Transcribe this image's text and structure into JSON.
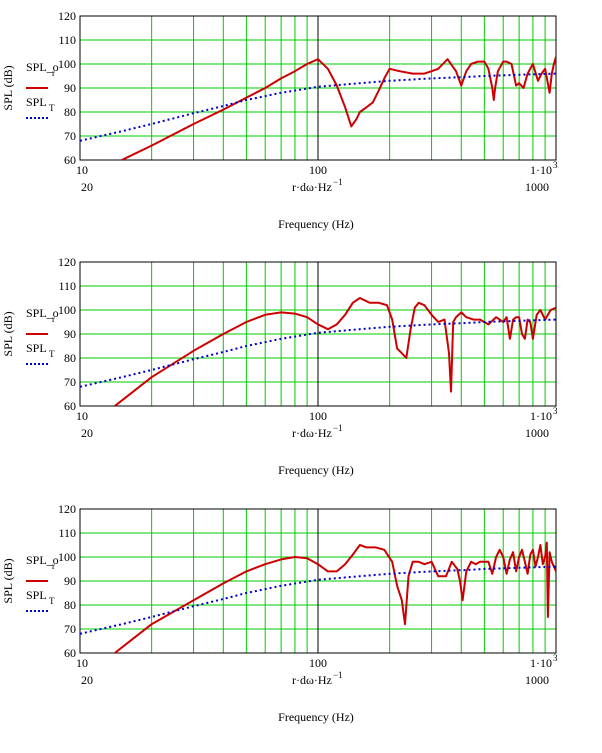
{
  "chart_data": [
    {
      "type": "line",
      "xscale": "log",
      "xlim": [
        10,
        1000
      ],
      "ylim": [
        60,
        120
      ],
      "yticks": [
        "60",
        "70",
        "80",
        "90",
        "100",
        "110",
        "120"
      ],
      "xtick_min": "10",
      "xtick_mid": "100",
      "xtick_max_base": "1·10",
      "xtick_max_exp": "3",
      "xlabel": "r·dω·Hz",
      "xlabel_exp": "−1",
      "ylabel": "SPL (dB)",
      "xaxis_title": "Frequency (Hz)",
      "extra_tick_20": "20",
      "extra_tick_1000": "1000",
      "series": [
        {
          "name": "SPL_o",
          "name_main": "SPL_o",
          "name_sub": "r",
          "color": "#cc0000",
          "style": "solid",
          "x": [
            15,
            20,
            30,
            40,
            50,
            60,
            70,
            80,
            90,
            100,
            110,
            120,
            130,
            138,
            145,
            150,
            160,
            170,
            180,
            190,
            200,
            220,
            250,
            280,
            300,
            320,
            350,
            380,
            400,
            420,
            440,
            470,
            500,
            520,
            540,
            548,
            555,
            570,
            600,
            620,
            650,
            680,
            700,
            730,
            760,
            800,
            840,
            870,
            900,
            940,
            960,
            980,
            1000
          ],
          "y": [
            60,
            66,
            75,
            81,
            86,
            90,
            94,
            97,
            100,
            102,
            98,
            91,
            82,
            74,
            77,
            80,
            82,
            84,
            89,
            94,
            98,
            97,
            96,
            96,
            97,
            98,
            102,
            97,
            91,
            97,
            100,
            101,
            101,
            98,
            90,
            85,
            90,
            97,
            101,
            101,
            100,
            91,
            92,
            90,
            96,
            100,
            93,
            96,
            98,
            88,
            96,
            100,
            103
          ]
        },
        {
          "name": "SPL_T",
          "name_main": "SPL",
          "name_sub": "T",
          "color": "#0000cc",
          "style": "dotted",
          "x": [
            10,
            15,
            20,
            30,
            40,
            50,
            70,
            100,
            150,
            200,
            300,
            400,
            500,
            700,
            1000
          ],
          "y": [
            68,
            72,
            75,
            79.5,
            82.5,
            85,
            88,
            90.5,
            92,
            93,
            94,
            94.5,
            95,
            95.5,
            96
          ]
        }
      ]
    },
    {
      "type": "line",
      "xscale": "log",
      "xlim": [
        10,
        1000
      ],
      "ylim": [
        60,
        120
      ],
      "yticks": [
        "60",
        "70",
        "80",
        "90",
        "100",
        "110",
        "120"
      ],
      "xtick_min": "10",
      "xtick_mid": "100",
      "xtick_max_base": "1·10",
      "xtick_max_exp": "3",
      "xlabel": "r·dω·Hz",
      "xlabel_exp": "−1",
      "ylabel": "SPL (dB)",
      "xaxis_title": "Frequency (Hz)",
      "extra_tick_20": "20",
      "extra_tick_1000": "1000",
      "series": [
        {
          "name": "SPL_o",
          "name_main": "SPL_o",
          "name_sub": "r",
          "color": "#cc0000",
          "style": "solid",
          "x": [
            14,
            20,
            30,
            40,
            50,
            60,
            70,
            80,
            90,
            100,
            110,
            120,
            130,
            140,
            150,
            165,
            180,
            195,
            205,
            215,
            225,
            235,
            245,
            255,
            265,
            280,
            300,
            320,
            340,
            355,
            362,
            370,
            380,
            400,
            420,
            450,
            480,
            520,
            560,
            580,
            600,
            620,
            640,
            660,
            680,
            700,
            720,
            740,
            760,
            780,
            800,
            830,
            860,
            900,
            950,
            1000
          ],
          "y": [
            60,
            72,
            83,
            90,
            95,
            98,
            99,
            98.5,
            97,
            94,
            92,
            94,
            98,
            103,
            105,
            103,
            103,
            102,
            96,
            84,
            82,
            80,
            92,
            101,
            103,
            102,
            98,
            95,
            96,
            82,
            66,
            95,
            97,
            99,
            97,
            96,
            96,
            94,
            97,
            96,
            95,
            97,
            88,
            96,
            97,
            97,
            90,
            88,
            96,
            95,
            88,
            98,
            100,
            96,
            100,
            101
          ]
        },
        {
          "name": "SPL_T",
          "name_main": "SPL",
          "name_sub": "T",
          "color": "#0000cc",
          "style": "dotted",
          "x": [
            10,
            15,
            20,
            30,
            40,
            50,
            70,
            100,
            150,
            200,
            300,
            400,
            500,
            700,
            1000
          ],
          "y": [
            68,
            72,
            75,
            79.5,
            82.5,
            85,
            88,
            90.5,
            92,
            93,
            94,
            94.5,
            95,
            95.5,
            96
          ]
        }
      ]
    },
    {
      "type": "line",
      "xscale": "log",
      "xlim": [
        10,
        1000
      ],
      "ylim": [
        60,
        120
      ],
      "yticks": [
        "60",
        "70",
        "80",
        "90",
        "100",
        "110",
        "120"
      ],
      "xtick_min": "10",
      "xtick_mid": "100",
      "xtick_max_base": "1·10",
      "xtick_max_exp": "3",
      "xlabel": "r·dω·Hz",
      "xlabel_exp": "−1",
      "ylabel": "SPL (dB)",
      "xaxis_title": "Frequency (Hz)",
      "extra_tick_20": "20",
      "extra_tick_1000": "1000",
      "series": [
        {
          "name": "SPL_o",
          "name_main": "SPL_o",
          "name_sub": "r",
          "color": "#cc0000",
          "style": "solid",
          "x": [
            14,
            20,
            30,
            40,
            50,
            60,
            70,
            80,
            90,
            100,
            110,
            120,
            130,
            140,
            150,
            160,
            175,
            190,
            205,
            215,
            225,
            232,
            240,
            250,
            265,
            280,
            300,
            320,
            345,
            365,
            385,
            395,
            405,
            420,
            440,
            460,
            480,
            500,
            520,
            540,
            560,
            580,
            600,
            620,
            640,
            660,
            680,
            700,
            720,
            740,
            760,
            780,
            800,
            820,
            840,
            860,
            880,
            900,
            915,
            925,
            940,
            960,
            1000
          ],
          "y": [
            60,
            72,
            82,
            89,
            94,
            97,
            99,
            100,
            99.5,
            97,
            94,
            94,
            97,
            101,
            105,
            104,
            104,
            103,
            98,
            88,
            82,
            72,
            92,
            98,
            98,
            97,
            98,
            92,
            92,
            98,
            95,
            90,
            82,
            94,
            98,
            97,
            98,
            98,
            98,
            93,
            100,
            103,
            100,
            93,
            99,
            102,
            94,
            100,
            103,
            98,
            93,
            101,
            103,
            96,
            100,
            105,
            97,
            100,
            106,
            75,
            102,
            98,
            94
          ]
        },
        {
          "name": "SPL_T",
          "name_main": "SPL",
          "name_sub": "T",
          "color": "#0000cc",
          "style": "dotted",
          "x": [
            10,
            15,
            20,
            30,
            40,
            50,
            70,
            100,
            150,
            200,
            300,
            400,
            500,
            700,
            1000
          ],
          "y": [
            68,
            72,
            75,
            79.5,
            82.5,
            85,
            88,
            90.5,
            92,
            93,
            94,
            94.5,
            95,
            95.5,
            96
          ]
        }
      ]
    }
  ]
}
